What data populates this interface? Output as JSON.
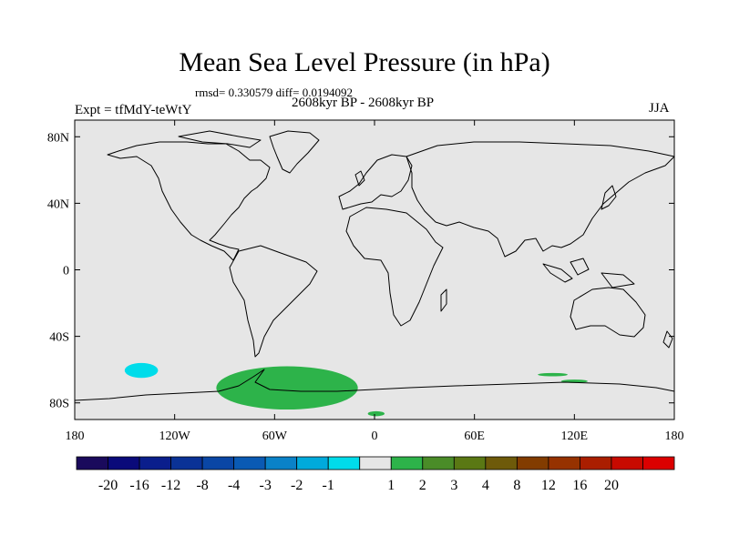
{
  "title": "Mean Sea Level Pressure (in hPa)",
  "stats": "rmsd= 0.330579  diff= 0.0194092",
  "period": "2608kyr BP - 2608kyr BP",
  "experiment": "Expt = tfMdY-teWtY",
  "season": "JJA",
  "colors": {
    "ocean_land_bg": "#e6e6e6",
    "coast": "#000000",
    "positive_anomaly": "#2db34a",
    "negative_anomaly": "#00dcea"
  },
  "chart_data": {
    "type": "heatmap",
    "projection": "cylindrical-equidistant",
    "variable": "Mean Sea Level Pressure anomaly (hPa)",
    "lon_range": [
      -180,
      180
    ],
    "lat_range": [
      -90,
      90
    ],
    "x_ticks": [
      "180",
      "120W",
      "60W",
      "0",
      "60E",
      "120E",
      "180"
    ],
    "x_tick_values": [
      -180,
      -120,
      -60,
      0,
      60,
      120,
      180
    ],
    "y_ticks": [
      "80N",
      "40N",
      "0",
      "40S",
      "80S"
    ],
    "y_tick_values": [
      80,
      40,
      0,
      -40,
      -80
    ],
    "colorbar": {
      "colors": [
        "#1a0a5c",
        "#0a0a7a",
        "#0a1e8c",
        "#0a3296",
        "#0a46a5",
        "#0a5ab4",
        "#0a82c8",
        "#00aadc",
        "#00dcea",
        "#e6e6e6",
        "#2db34a",
        "#4a8c28",
        "#5a7814",
        "#6e5a0a",
        "#823c00",
        "#963200",
        "#aa1e00",
        "#c80a00",
        "#dc0000"
      ],
      "labels": [
        "-20",
        "-16",
        "-12",
        "-8",
        "-4",
        "-3",
        "-2",
        "-1",
        "1",
        "2",
        "3",
        "4",
        "8",
        "12",
        "16",
        "20"
      ]
    },
    "anomaly_regions": [
      {
        "sign": "positive",
        "value_range": "1 to 2",
        "lon_min": -95,
        "lon_max": -10,
        "lat_min": -84,
        "lat_max": -58
      },
      {
        "sign": "positive",
        "value_range": "1 to 2",
        "lon_min": -4,
        "lon_max": 6,
        "lat_min": -88,
        "lat_max": -85
      },
      {
        "sign": "positive",
        "value_range": "1 to 2",
        "lon_min": 98,
        "lon_max": 116,
        "lat_min": -64,
        "lat_max": -62
      },
      {
        "sign": "positive",
        "value_range": "1 to 2",
        "lon_min": 112,
        "lon_max": 128,
        "lat_min": -68,
        "lat_max": -66
      },
      {
        "sign": "negative",
        "value_range": "-2 to -1",
        "lon_min": -150,
        "lon_max": -130,
        "lat_min": -65,
        "lat_max": -56
      }
    ]
  }
}
